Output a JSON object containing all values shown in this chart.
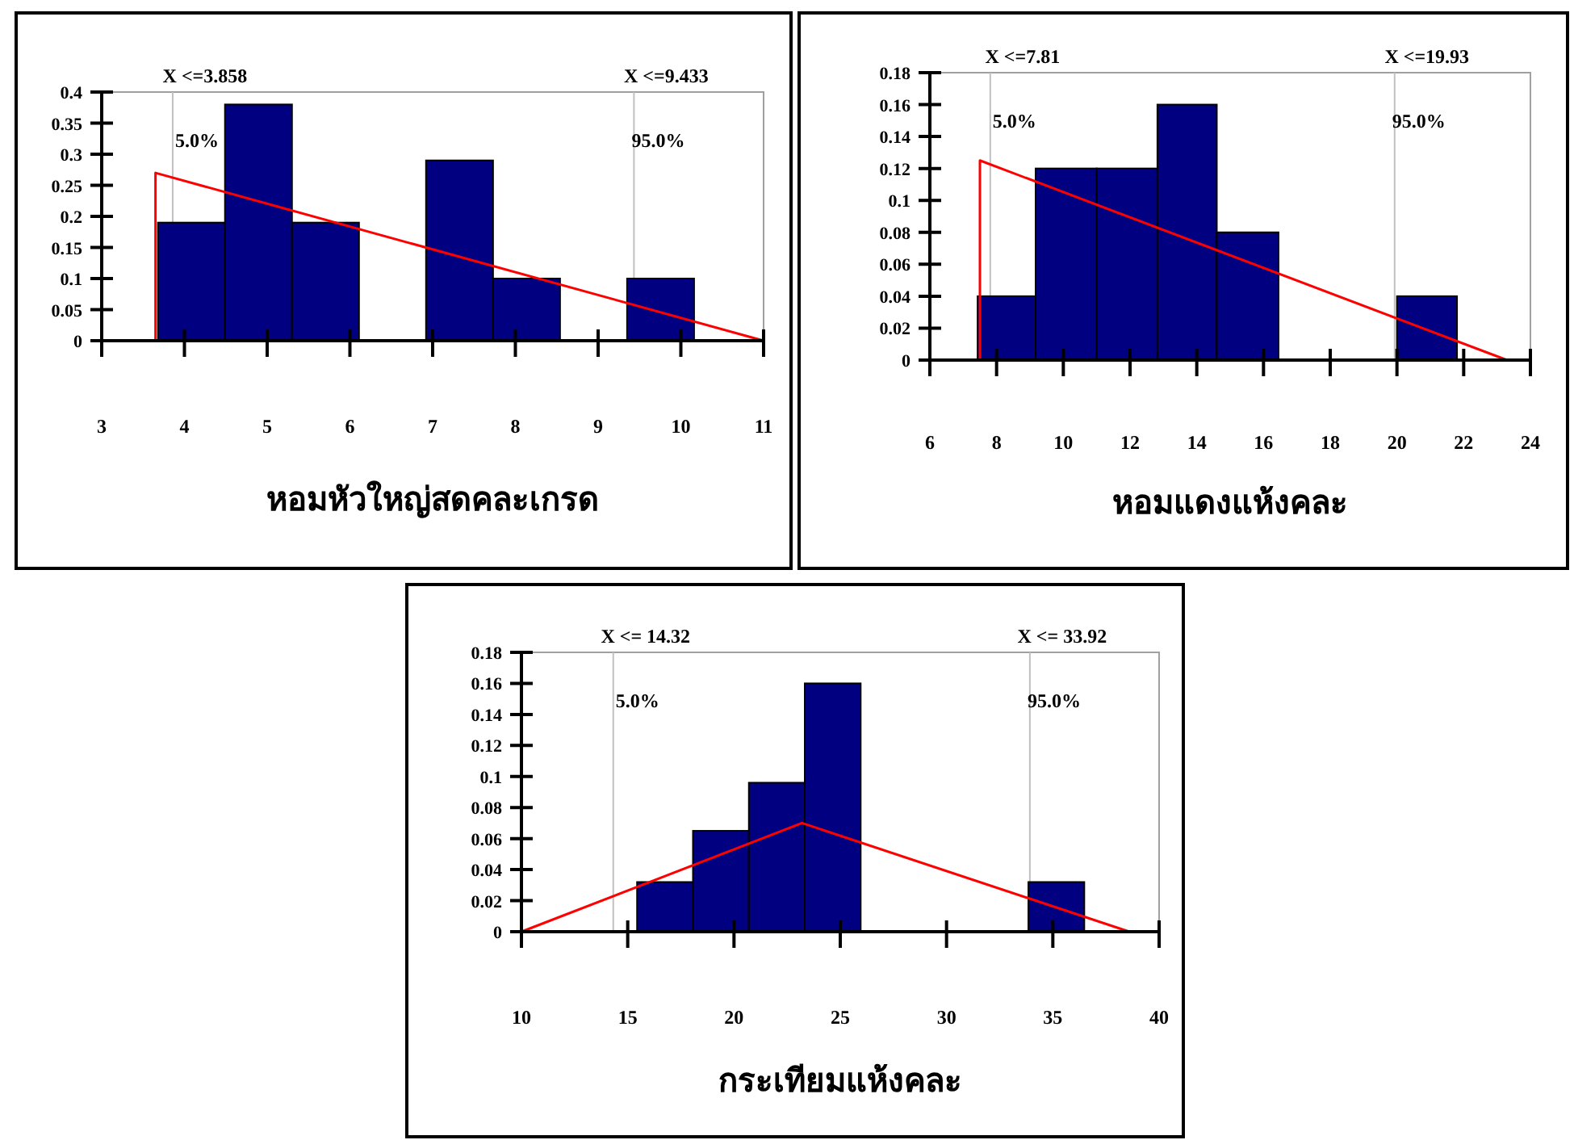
{
  "chart_data": [
    {
      "type": "histogram",
      "xlabel": "หอมหัวใหญ่สดคละเกรด",
      "bins": [
        3.68,
        4.49,
        5.3,
        6.11,
        6.92,
        7.73,
        8.54,
        9.35,
        10.16
      ],
      "values": [
        0.19,
        0.38,
        0.19,
        0,
        0.29,
        0.1,
        0,
        0.1
      ],
      "color": "#000080",
      "series": [
        {
          "type": "line",
          "x": [
            3.65,
            3.65,
            11
          ],
          "values": [
            0,
            0.27,
            0
          ],
          "color": "#ff0000"
        }
      ],
      "xlim": [
        3,
        11
      ],
      "xticks": [
        3,
        4,
        5,
        6,
        7,
        8,
        9,
        10,
        11
      ],
      "ylim": [
        0,
        0.4
      ],
      "yticks": [
        0,
        0.05,
        0.1,
        0.15,
        0.2,
        0.25,
        0.3,
        0.35,
        0.4
      ],
      "ref_lines": [
        {
          "axis": "x",
          "value": 3.858,
          "label": "X <=3.858",
          "color": "#c0c0c0"
        },
        {
          "axis": "x",
          "value": 9.433,
          "label": "X <=9.433",
          "color": "#c0c0c0"
        }
      ],
      "annotations": [
        "5.0%",
        "95.0%"
      ],
      "grid": false
    },
    {
      "type": "histogram",
      "xlabel": "หอมแดงแห้งคละ",
      "bins": [
        7.43,
        9.17,
        11.0,
        12.82,
        14.6,
        16.45,
        20.0,
        21.8
      ],
      "values": [
        0.04,
        0.12,
        0.12,
        0.16,
        0.08,
        0,
        0.04
      ],
      "color": "#000080",
      "series": [
        {
          "type": "line",
          "x": [
            7.5,
            7.5,
            23.3
          ],
          "values": [
            0,
            0.125,
            0
          ],
          "color": "#ff0000"
        }
      ],
      "xlim": [
        6,
        24
      ],
      "xticks": [
        6,
        8,
        10,
        12,
        14,
        16,
        18,
        20,
        22,
        24
      ],
      "ylim": [
        0,
        0.18
      ],
      "yticks": [
        0,
        0.02,
        0.04,
        0.06,
        0.08,
        0.1,
        0.12,
        0.14,
        0.16,
        0.18
      ],
      "ref_lines": [
        {
          "axis": "x",
          "value": 7.81,
          "label": "X <=7.81",
          "color": "#c0c0c0"
        },
        {
          "axis": "x",
          "value": 19.93,
          "label": "X <=19.93",
          "color": "#c0c0c0"
        }
      ],
      "annotations": [
        "5.0%",
        "95.0%"
      ],
      "grid": false
    },
    {
      "type": "histogram",
      "xlabel": "กระเทียมแห้งคละ",
      "bins": [
        15.44,
        18.07,
        20.7,
        23.33,
        25.96,
        33.85,
        36.48
      ],
      "values": [
        0.032,
        0.065,
        0.096,
        0.16,
        0,
        0.032
      ],
      "color": "#000080",
      "series": [
        {
          "type": "line",
          "x": [
            10,
            23.2,
            38.6
          ],
          "values": [
            0,
            0.07,
            0
          ],
          "color": "#ff0000"
        }
      ],
      "xlim": [
        10,
        40
      ],
      "xticks": [
        10,
        15,
        20,
        25,
        30,
        35,
        40
      ],
      "ylim": [
        0,
        0.18
      ],
      "yticks": [
        0,
        0.02,
        0.04,
        0.06,
        0.08,
        0.1,
        0.12,
        0.14,
        0.16,
        0.18
      ],
      "ref_lines": [
        {
          "axis": "x",
          "value": 14.32,
          "label": "X <= 14.32",
          "color": "#c0c0c0"
        },
        {
          "axis": "x",
          "value": 33.92,
          "label": "X <= 33.92",
          "color": "#c0c0c0"
        }
      ],
      "annotations": [
        "5.0%",
        "95.0%"
      ],
      "grid": false
    }
  ]
}
